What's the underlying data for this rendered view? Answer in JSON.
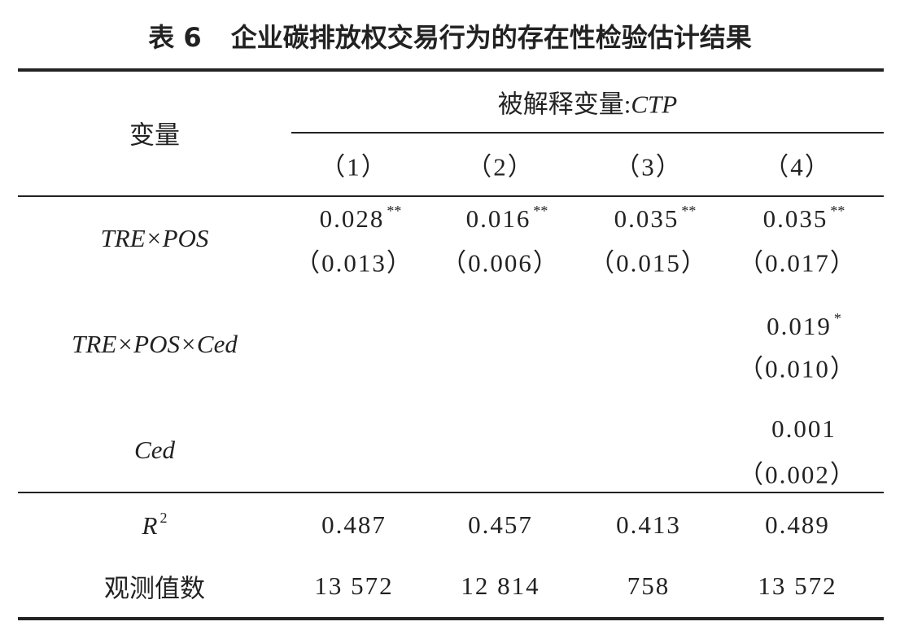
{
  "title": {
    "label": "表 6",
    "text": "企业碳排放权交易行为的存在性检验估计结果"
  },
  "table": {
    "stub_header": "变量",
    "dependent_label": "被解释变量:",
    "dependent_var": "CTP",
    "columns": [
      "（1）",
      "（2）",
      "（3）",
      "（4）"
    ],
    "rows": [
      {
        "label": "TRE×POS",
        "cells": [
          {
            "coef": "0.028",
            "stars": "**",
            "se": "（0.013）"
          },
          {
            "coef": "0.016",
            "stars": "**",
            "se": "（0.006）"
          },
          {
            "coef": "0.035",
            "stars": "**",
            "se": "（0.015）"
          },
          {
            "coef": "0.035",
            "stars": "**",
            "se": "（0.017）"
          }
        ]
      },
      {
        "label": "TRE×POS×Ced",
        "cells": [
          null,
          null,
          null,
          {
            "coef": "0.019",
            "stars": "*",
            "se": "（0.010）"
          }
        ]
      },
      {
        "label": "Ced",
        "cells": [
          null,
          null,
          null,
          {
            "coef": "0.001",
            "se": "（0.002）"
          }
        ]
      }
    ],
    "r2": {
      "label": "R",
      "sup": "2",
      "cells": [
        "0.487",
        "0.457",
        "0.413",
        "0.489"
      ]
    },
    "observations": {
      "label": "观测值数",
      "cells": [
        "13 572",
        "12 814",
        "758",
        "13 572"
      ]
    }
  }
}
